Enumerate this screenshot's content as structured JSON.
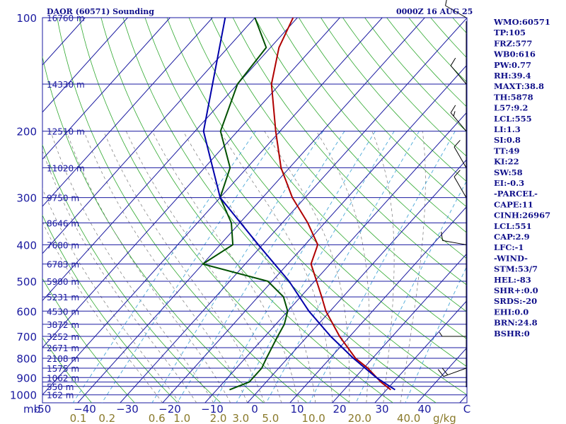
{
  "header": {
    "station": "DAOR (60571) Sounding",
    "time": "0000Z 16 AUG 25"
  },
  "chart_data": {
    "type": "line",
    "diagram": "skew-t",
    "pressure_labels": [
      {
        "p": 100,
        "label": "100"
      },
      {
        "p": 200,
        "label": "200"
      },
      {
        "p": 300,
        "label": "300"
      },
      {
        "p": 400,
        "label": "400"
      },
      {
        "p": 500,
        "label": "500"
      },
      {
        "p": 600,
        "label": "600"
      },
      {
        "p": 700,
        "label": "700"
      },
      {
        "p": 800,
        "label": "800"
      },
      {
        "p": 900,
        "label": "900"
      },
      {
        "p": 1000,
        "label": "1000"
      }
    ],
    "pressure_unit": "mb",
    "isobars": [
      100,
      150,
      200,
      250,
      300,
      350,
      400,
      450,
      500,
      550,
      600,
      650,
      700,
      750,
      800,
      850,
      900,
      925,
      950,
      1000
    ],
    "height_labels": [
      {
        "p": 100,
        "label": "16760 m"
      },
      {
        "p": 150,
        "label": "14330 m"
      },
      {
        "p": 200,
        "label": "12510 m"
      },
      {
        "p": 250,
        "label": "11020 m"
      },
      {
        "p": 300,
        "label": "9750 m"
      },
      {
        "p": 350,
        "label": "8646 m"
      },
      {
        "p": 400,
        "label": "7680 m"
      },
      {
        "p": 450,
        "label": "6783 m"
      },
      {
        "p": 500,
        "label": "5980 m"
      },
      {
        "p": 550,
        "label": "5231 m"
      },
      {
        "p": 600,
        "label": "4530 m"
      },
      {
        "p": 650,
        "label": "3872 m"
      },
      {
        "p": 700,
        "label": "3252 m"
      },
      {
        "p": 750,
        "label": "2671 m"
      },
      {
        "p": 800,
        "label": "2108 m"
      },
      {
        "p": 850,
        "label": "1575 m"
      },
      {
        "p": 900,
        "label": "1062 m"
      },
      {
        "p": 950,
        "label": "550 m"
      },
      {
        "p": 1000,
        "label": "162 m"
      }
    ],
    "temperature_labels": [
      {
        "t": -50,
        "label": "-50"
      },
      {
        "t": -40,
        "label": "−40"
      },
      {
        "t": -30,
        "label": "−30"
      },
      {
        "t": -20,
        "label": "−20"
      },
      {
        "t": -10,
        "label": "−10"
      },
      {
        "t": 0,
        "label": "0"
      },
      {
        "t": 10,
        "label": "10"
      },
      {
        "t": 20,
        "label": "20"
      },
      {
        "t": 30,
        "label": "30"
      },
      {
        "t": 40,
        "label": "40"
      },
      {
        "t": 50,
        "label": "C"
      }
    ],
    "mixing_ratio_labels": [
      {
        "w": 0.1,
        "label": "0.1"
      },
      {
        "w": 0.2,
        "label": "0.2"
      },
      {
        "w": 0.6,
        "label": "0.6"
      },
      {
        "w": 1.0,
        "label": "1.0"
      },
      {
        "w": 2.0,
        "label": "2.0"
      },
      {
        "w": 3.0,
        "label": "3.0"
      },
      {
        "w": 5.0,
        "label": "5.0"
      },
      {
        "w": 10.0,
        "label": "10.0"
      },
      {
        "w": 20.0,
        "label": "20.0"
      },
      {
        "w": 40.0,
        "label": "40.0"
      }
    ],
    "mixing_ratio_unit": "g/kg",
    "series": [
      {
        "name": "Temperature",
        "color": "#b00000",
        "points": [
          [
            970,
            31
          ],
          [
            925,
            27
          ],
          [
            850,
            21
          ],
          [
            800,
            16
          ],
          [
            700,
            7.6
          ],
          [
            600,
            -1
          ],
          [
            550,
            -5
          ],
          [
            500,
            -9.5
          ],
          [
            450,
            -14.5
          ],
          [
            400,
            -17
          ],
          [
            350,
            -24
          ],
          [
            300,
            -33
          ],
          [
            250,
            -42
          ],
          [
            200,
            -51
          ],
          [
            150,
            -62
          ],
          [
            120,
            -68
          ],
          [
            100,
            -71
          ]
        ]
      },
      {
        "name": "Dewpoint",
        "color": "#005000",
        "points": [
          [
            970,
            -7
          ],
          [
            925,
            -4
          ],
          [
            850,
            -4
          ],
          [
            800,
            -5
          ],
          [
            700,
            -7
          ],
          [
            650,
            -8
          ],
          [
            600,
            -10
          ],
          [
            550,
            -14
          ],
          [
            500,
            -21
          ],
          [
            450,
            -40
          ],
          [
            400,
            -37
          ],
          [
            350,
            -42
          ],
          [
            300,
            -50
          ],
          [
            250,
            -54
          ],
          [
            200,
            -64
          ],
          [
            150,
            -70
          ],
          [
            120,
            -71
          ],
          [
            100,
            -80
          ]
        ]
      },
      {
        "name": "Parcel",
        "color": "#0000aa",
        "points": [
          [
            970,
            32
          ],
          [
            900,
            25
          ],
          [
            800,
            15.5
          ],
          [
            700,
            5.5
          ],
          [
            600,
            -5
          ],
          [
            500,
            -16
          ],
          [
            400,
            -31
          ],
          [
            300,
            -50
          ],
          [
            200,
            -68
          ],
          [
            100,
            -87
          ]
        ]
      }
    ],
    "wind_barbs": [
      {
        "p": 100,
        "dir": 300,
        "spd": 10
      },
      {
        "p": 150,
        "dir": 320,
        "spd": 10
      },
      {
        "p": 200,
        "dir": 320,
        "spd": 15
      },
      {
        "p": 250,
        "dir": 330,
        "spd": 10
      },
      {
        "p": 300,
        "dir": 330,
        "spd": 10
      },
      {
        "p": 400,
        "dir": 280,
        "spd": 10
      },
      {
        "p": 700,
        "dir": 270,
        "spd": 5
      },
      {
        "p": 850,
        "dir": 250,
        "spd": 20
      }
    ]
  },
  "indices": [
    "WMO:60571",
    "TP:105",
    "FRZ:577",
    "WB0:616",
    "PW:0.77",
    "RH:39.4",
    "MAXT:38.8",
    "TH:5878",
    "L57:9.2",
    "LCL:555",
    "LI:1.3",
    "SI:0.8",
    "TT:49",
    "KI:22",
    "SW:58",
    "EI:-0.3",
    "-PARCEL-",
    "CAPE:11",
    "CINH:26967",
    "LCL:551",
    "CAP:2.9",
    "LFC:-1",
    "-WIND-",
    "STM:53/7",
    "HEL:-83",
    "SHR+:0.0",
    "SRDS:-20",
    "EHI:0.0",
    "BRN:24.8",
    "BSHR:0"
  ]
}
